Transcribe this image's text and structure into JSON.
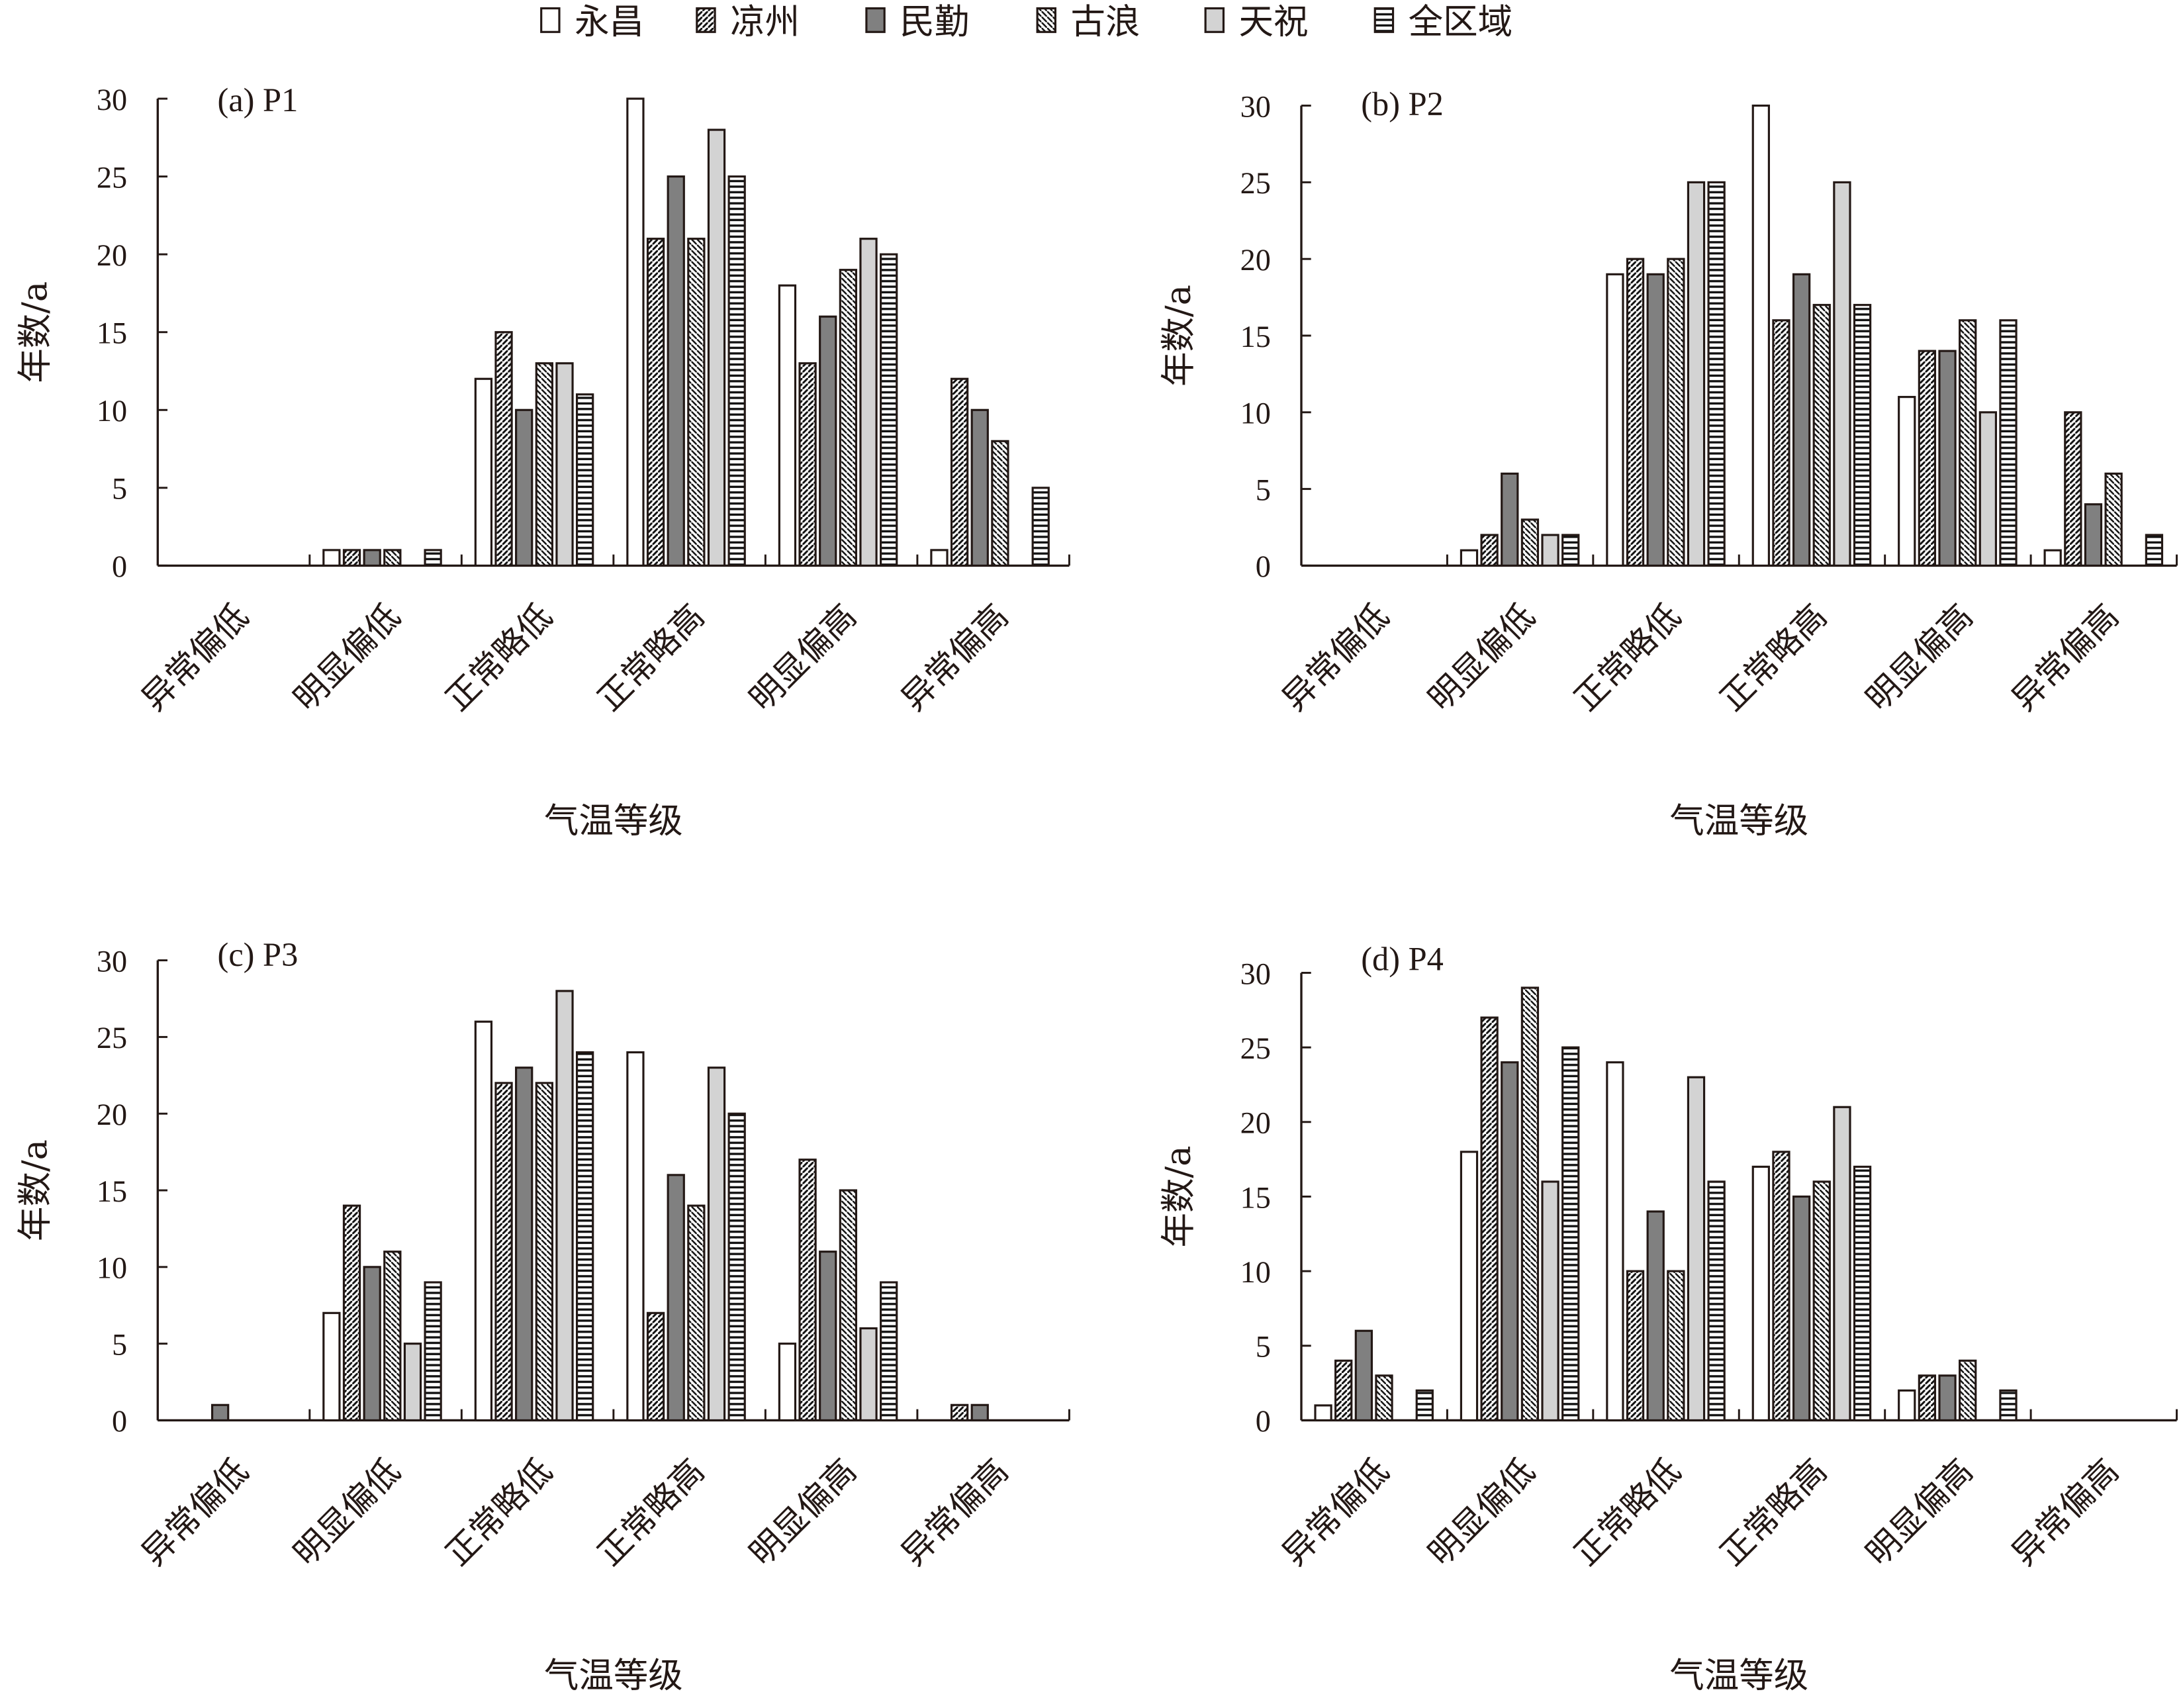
{
  "chart_data": {
    "type": "bar",
    "legend": {
      "position": "top-center"
    },
    "series_names": [
      "永昌",
      "凉州",
      "民勤",
      "古浪",
      "天祝",
      "全区域"
    ],
    "series_fills": [
      "#ffffff",
      "url(#pDiag)",
      "#808080",
      "url(#pBack)",
      "#d3d3d3",
      "url(#pHoriz)"
    ],
    "categories": [
      "异常偏低",
      "明显偏低",
      "正常略低",
      "正常略高",
      "明显偏高",
      "异常偏高"
    ],
    "xlabel": "气温等级",
    "ylabel": "年数/a",
    "ylim": [
      0,
      30
    ],
    "yticks": [
      0,
      5,
      10,
      15,
      20,
      25,
      30
    ],
    "panels": [
      {
        "title": "(a) P1",
        "values": [
          [
            0,
            0,
            0,
            0,
            0,
            0
          ],
          [
            1,
            1,
            1,
            1,
            0,
            1
          ],
          [
            12,
            15,
            10,
            13,
            13,
            11
          ],
          [
            30,
            21,
            25,
            21,
            28,
            25
          ],
          [
            18,
            13,
            16,
            19,
            21,
            20
          ],
          [
            1,
            12,
            10,
            8,
            0,
            5
          ]
        ]
      },
      {
        "title": "(b) P2",
        "values": [
          [
            0,
            0,
            0,
            0,
            0,
            0
          ],
          [
            1,
            2,
            6,
            3,
            2,
            2
          ],
          [
            19,
            20,
            19,
            20,
            25,
            25
          ],
          [
            30,
            16,
            19,
            17,
            25,
            17
          ],
          [
            11,
            14,
            14,
            16,
            10,
            16
          ],
          [
            1,
            10,
            4,
            6,
            0,
            2
          ]
        ]
      },
      {
        "title": "(c) P3",
        "values": [
          [
            0,
            0,
            1,
            0,
            0,
            0
          ],
          [
            7,
            14,
            10,
            11,
            5,
            9
          ],
          [
            26,
            22,
            23,
            22,
            28,
            24
          ],
          [
            24,
            7,
            16,
            14,
            23,
            20
          ],
          [
            5,
            17,
            11,
            15,
            6,
            9
          ],
          [
            0,
            1,
            1,
            0,
            0,
            0
          ]
        ]
      },
      {
        "title": "(d) P4",
        "values": [
          [
            1,
            4,
            6,
            3,
            0,
            2
          ],
          [
            18,
            27,
            24,
            29,
            16,
            25
          ],
          [
            24,
            10,
            14,
            10,
            23,
            16
          ],
          [
            17,
            18,
            15,
            16,
            21,
            17
          ],
          [
            2,
            3,
            3,
            4,
            0,
            2
          ],
          [
            0,
            0,
            0,
            0,
            0,
            0
          ]
        ]
      }
    ]
  }
}
